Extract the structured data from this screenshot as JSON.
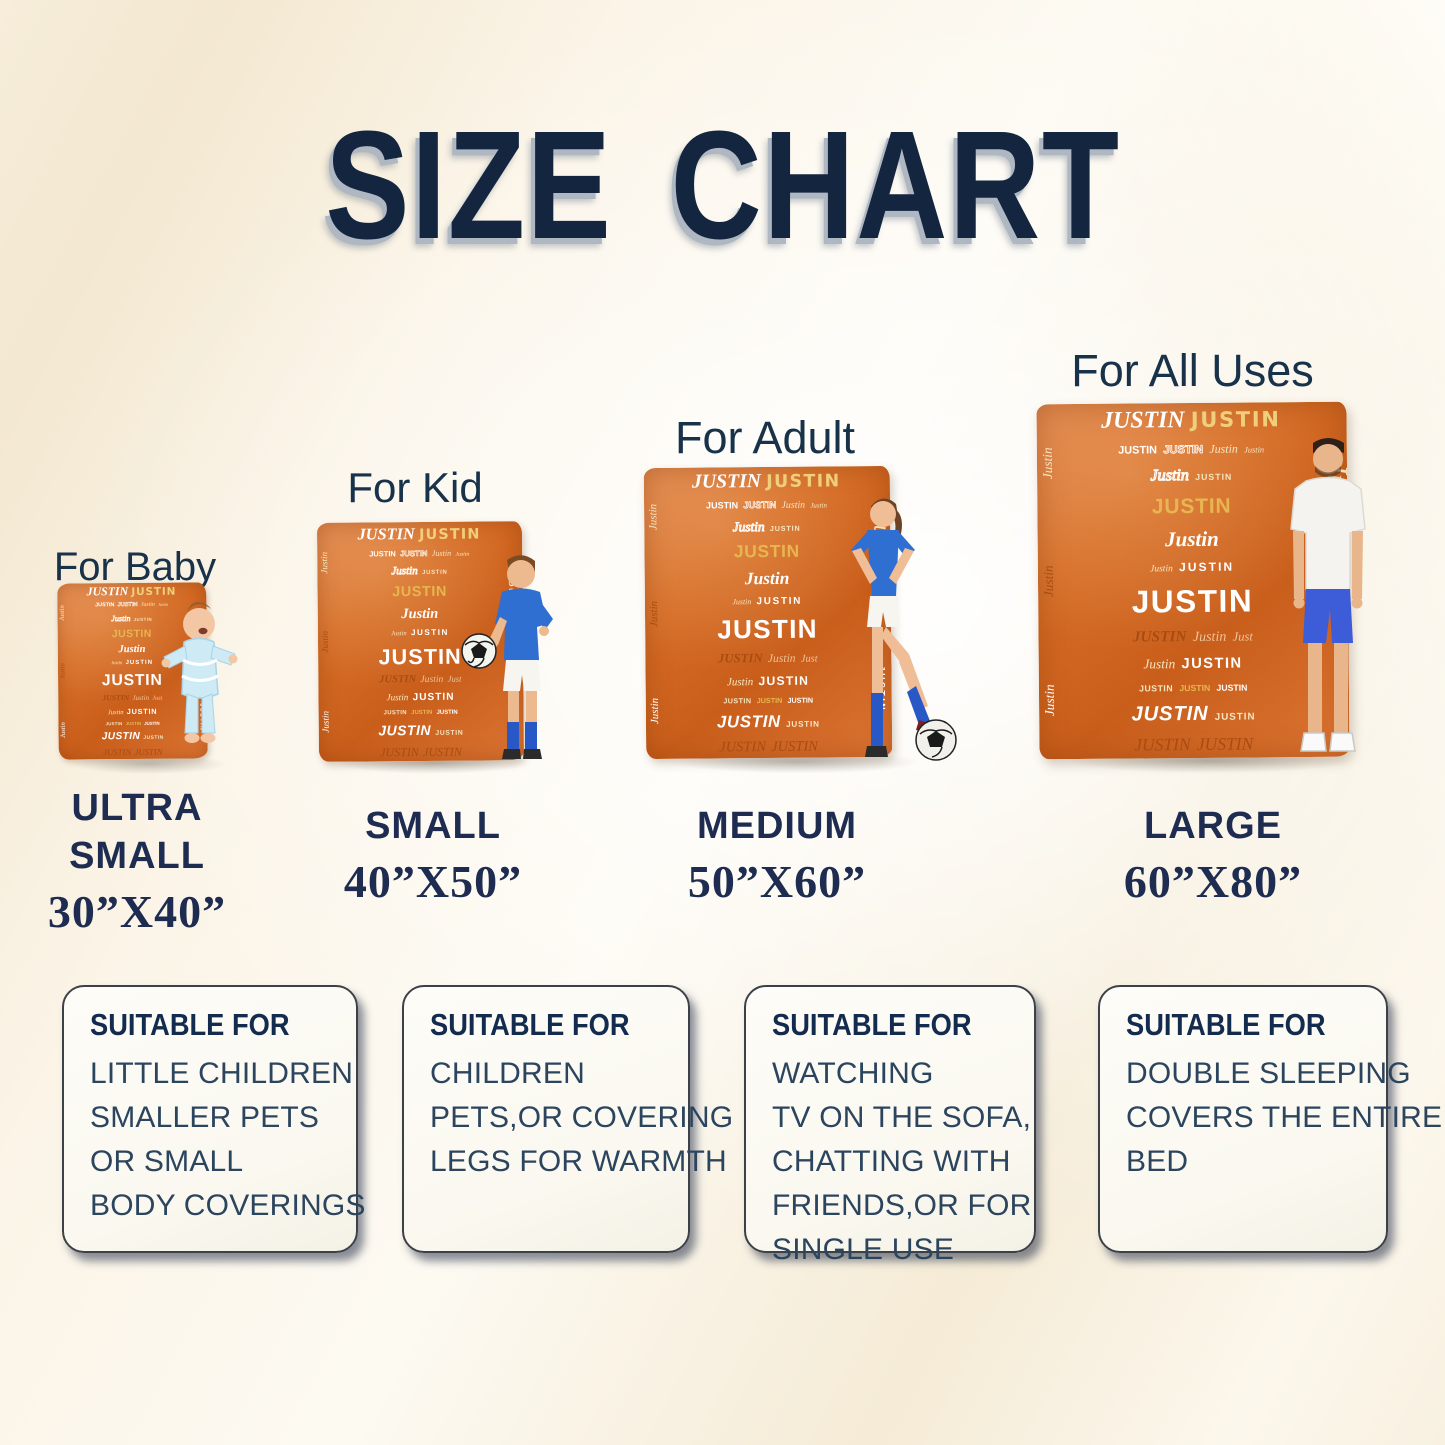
{
  "page": {
    "title": "SIZE CHART"
  },
  "colors": {
    "title_navy": "#13253f",
    "title_shadow": "#aeb7c2",
    "label_navy": "#18324a",
    "size_navy": "#1d2c50",
    "box_header_navy": "#122b4e",
    "box_text": "#2c455f",
    "blanket_orange": "#d66d26",
    "background_cream": "#f8f1e1"
  },
  "sections": [
    {
      "use_label": "For Baby",
      "size_name_lines": [
        "ULTRA",
        "SMALL"
      ],
      "dimensions": "30”X40”",
      "suitable": {
        "header": "SUITABLE FOR",
        "lines": [
          "LITTLE CHILDREN",
          "SMALLER PETS",
          "OR SMALL",
          "BODY COVERINGS"
        ]
      }
    },
    {
      "use_label": "For Kid",
      "size_name_lines": [
        "SMALL"
      ],
      "dimensions": "40”X50”",
      "suitable": {
        "header": "SUITABLE FOR",
        "lines": [
          "CHILDREN",
          "PETS,OR COVERING",
          "LEGS FOR WARMTH"
        ]
      }
    },
    {
      "use_label": "For Adult",
      "size_name_lines": [
        "MEDIUM"
      ],
      "dimensions": "50”X60”",
      "suitable": {
        "header": "SUITABLE FOR",
        "lines": [
          "WATCHING",
          "TV ON THE SOFA,",
          "CHATTING WITH",
          "FRIENDS,OR FOR",
          "SINGLE USE"
        ]
      }
    },
    {
      "use_label": "For All Uses",
      "size_name_lines": [
        "LARGE"
      ],
      "dimensions": "60”X80”",
      "suitable": {
        "header": "SUITABLE FOR",
        "lines": [
          "DOUBLE SLEEPING",
          "COVERS THE ENTIRE",
          "BED"
        ]
      }
    }
  ],
  "blanket": {
    "name": "JUSTIN",
    "palette": {
      "white": "#ffffff",
      "cream": "#f6e6c1",
      "gold": "#e7b64f",
      "gold_light": "#efcf7b",
      "rust": "#a84c12",
      "peach": "#eec39a"
    },
    "rows": [
      [
        {
          "text": "JUSTIN",
          "style": "serif_italic",
          "color": "white",
          "size": 1.7
        },
        {
          "text": "JUSTIN",
          "style": "rounded",
          "color": "gold_light",
          "size": 1.5,
          "spacing": 0.08
        }
      ],
      [
        {
          "text": "JUSTIN",
          "style": "sans",
          "color": "white",
          "size": 0.78
        },
        {
          "text": "JUSTIN",
          "style": "sans_outline",
          "color": "white",
          "size": 0.8
        },
        {
          "text": "Justin",
          "style": "script",
          "color": "cream",
          "size": 0.85
        },
        {
          "text": "Justin",
          "style": "script",
          "color": "cream",
          "size": 0.6
        }
      ],
      [
        {
          "text": "Justin",
          "style": "script_outline",
          "color": "white",
          "size": 1.15
        },
        {
          "text": "JUSTIN",
          "style": "sans",
          "color": "cream",
          "size": 0.62,
          "spacing": 0.12
        }
      ],
      [
        {
          "text": "JUSTIN",
          "style": "sans",
          "color": "gold",
          "size": 1.5,
          "spacing": 0.04
        }
      ],
      [
        {
          "text": "Justin",
          "style": "serif_italic",
          "color": "white",
          "size": 1.5
        }
      ],
      [
        {
          "text": "Justin",
          "style": "script",
          "color": "cream",
          "size": 0.68
        },
        {
          "text": "JUSTIN",
          "style": "sans",
          "color": "white",
          "size": 0.85,
          "spacing": 0.18
        }
      ],
      [
        {
          "text": "JUSTIN",
          "style": "sans",
          "color": "white",
          "size": 2.25,
          "spacing": 0.05
        }
      ],
      [
        {
          "text": "JUSTIN",
          "style": "serif_italic",
          "color": "rust",
          "size": 1.1
        },
        {
          "text": "Justin",
          "style": "script",
          "color": "peach",
          "size": 1.0
        },
        {
          "text": "Just",
          "style": "script",
          "color": "peach",
          "size": 0.9
        }
      ],
      [
        {
          "text": "Justin",
          "style": "script",
          "color": "cream",
          "size": 0.95
        },
        {
          "text": "JUSTIN",
          "style": "sans",
          "color": "white",
          "size": 1.05,
          "spacing": 0.1
        }
      ],
      [
        {
          "text": "JUSTIN",
          "style": "sans",
          "color": "cream",
          "size": 0.62,
          "spacing": 0.06
        },
        {
          "text": "JUSTIN",
          "style": "sans",
          "color": "gold",
          "size": 0.62
        },
        {
          "text": "JUSTIN",
          "style": "sans",
          "color": "white",
          "size": 0.62
        }
      ],
      [
        {
          "text": "JUSTIN",
          "style": "brush",
          "color": "white",
          "size": 1.45
        },
        {
          "text": "JUSTIN",
          "style": "sans",
          "color": "cream",
          "size": 0.7,
          "spacing": 0.1
        }
      ],
      [
        {
          "text": "JUSTIN",
          "style": "script",
          "color": "rust",
          "size": 1.25
        },
        {
          "text": "JUSTIN",
          "style": "script",
          "color": "rust",
          "size": 1.25
        }
      ]
    ],
    "side_left_words": [
      {
        "text": "Justin",
        "color": "cream"
      },
      {
        "text": "Justin",
        "color": "rust"
      },
      {
        "text": "Justin",
        "color": "white"
      }
    ],
    "side_right": {
      "big_script": {
        "text": "Justin",
        "color": "cream"
      },
      "vertical_caps": {
        "text": "JUSTIN",
        "color": "white"
      }
    }
  }
}
